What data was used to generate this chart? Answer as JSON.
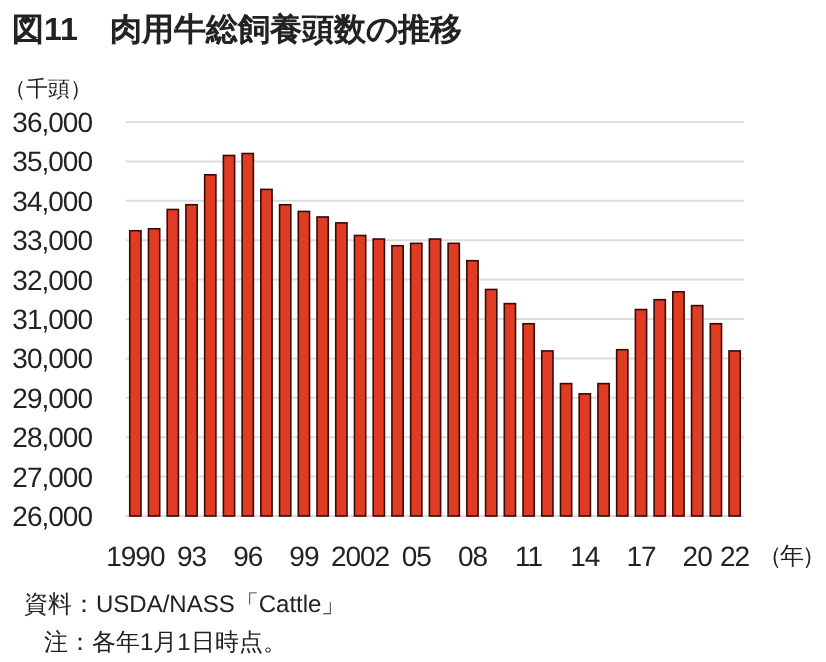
{
  "chart_data": {
    "type": "bar",
    "title": "図11　肉用牛総飼養頭数の推移",
    "ylabel": "（千頭）",
    "xlabel": "（年）",
    "categories": [
      "1990",
      null,
      null,
      "93",
      null,
      null,
      "96",
      null,
      null,
      "99",
      null,
      null,
      "2002",
      null,
      null,
      "05",
      null,
      null,
      "08",
      null,
      null,
      "11",
      null,
      null,
      "14",
      null,
      null,
      "17",
      null,
      null,
      "20",
      null,
      "22"
    ],
    "values": [
      33240,
      33290,
      33780,
      33900,
      34660,
      35150,
      35200,
      34290,
      33900,
      33730,
      33590,
      33440,
      33120,
      33030,
      32860,
      32920,
      33030,
      32920,
      32480,
      31750,
      31390,
      30880,
      30190,
      29360,
      29100,
      29360,
      30220,
      31240,
      31490,
      31690,
      31340,
      30880,
      30190
    ],
    "color": "#e03c24",
    "ylim": [
      26000,
      36000
    ],
    "yticks": [
      {
        "value": 26000,
        "label": "26,000"
      },
      {
        "value": 27000,
        "label": "27,000"
      },
      {
        "value": 28000,
        "label": "28,000"
      },
      {
        "value": 29000,
        "label": "29,000"
      },
      {
        "value": 30000,
        "label": "30,000"
      },
      {
        "value": 31000,
        "label": "31,000"
      },
      {
        "value": 32000,
        "label": "32,000"
      },
      {
        "value": 33000,
        "label": "33,000"
      },
      {
        "value": 34000,
        "label": "34,000"
      },
      {
        "value": 35000,
        "label": "35,000"
      },
      {
        "value": 36000,
        "label": "36,000"
      }
    ],
    "grid": "y",
    "annotations": [
      "資料：USDA/NASS「Cattle」",
      "注：各年1月1日時点。"
    ]
  }
}
